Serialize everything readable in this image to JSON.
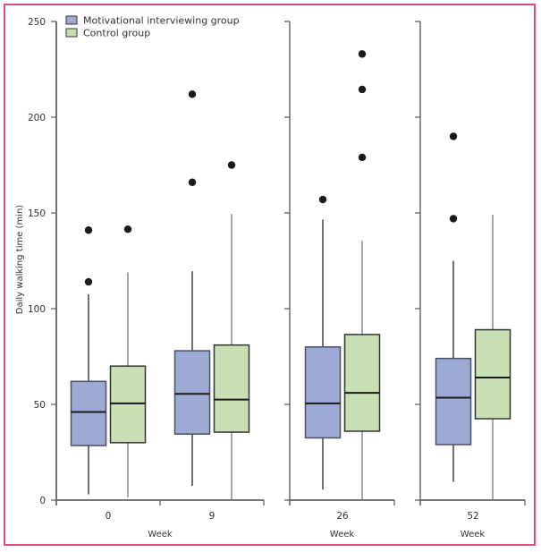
{
  "chart_data": {
    "type": "boxplot",
    "title": "",
    "ylabel": "Daily walking time (min)",
    "xlabel": "Week",
    "ylim": [
      0,
      250
    ],
    "yticks": [
      0,
      50,
      100,
      150,
      200,
      250
    ],
    "grid": false,
    "legend_position": "top-left",
    "colors": {
      "mi": "#9daad4",
      "control": "#c9e0b5",
      "outlier": "#1a1a1a",
      "frame": "#d4507a"
    },
    "legend": [
      {
        "key": "mi",
        "label": "Motivational interviewing group"
      },
      {
        "key": "control",
        "label": "Control group"
      }
    ],
    "panels": [
      {
        "xlabel": "Week",
        "weeks": [
          "0",
          "9"
        ]
      },
      {
        "xlabel": "Week",
        "weeks": [
          "26"
        ]
      },
      {
        "xlabel": "Week",
        "weeks": [
          "52"
        ]
      }
    ],
    "groups": [
      {
        "week": "0",
        "mi": {
          "whisker_low": 3,
          "q1": 28.5,
          "median": 46,
          "q3": 62,
          "whisker_high": 107.5,
          "outliers": [
            114,
            141
          ]
        },
        "control": {
          "whisker_low": 1.5,
          "q1": 30,
          "median": 50.5,
          "q3": 70,
          "whisker_high": 119,
          "outliers": [
            141.5
          ]
        }
      },
      {
        "week": "9",
        "mi": {
          "whisker_low": 7.5,
          "q1": 34.5,
          "median": 55.5,
          "q3": 78,
          "whisker_high": 119.5,
          "outliers": [
            166,
            212
          ]
        },
        "control": {
          "whisker_low": 0,
          "q1": 35.5,
          "median": 52.5,
          "q3": 81,
          "whisker_high": 149.5,
          "outliers": [
            175
          ]
        }
      },
      {
        "week": "26",
        "mi": {
          "whisker_low": 5.5,
          "q1": 32.5,
          "median": 50.5,
          "q3": 80,
          "whisker_high": 146.5,
          "outliers": [
            157
          ]
        },
        "control": {
          "whisker_low": 0,
          "q1": 36,
          "median": 56,
          "q3": 86.5,
          "whisker_high": 135.5,
          "outliers": [
            179,
            214.5,
            233
          ]
        }
      },
      {
        "week": "52",
        "mi": {
          "whisker_low": 9.5,
          "q1": 29,
          "median": 53.5,
          "q3": 74,
          "whisker_high": 125,
          "outliers": [
            147,
            190
          ]
        },
        "control": {
          "whisker_low": 0,
          "q1": 42.5,
          "median": 64,
          "q3": 89,
          "whisker_high": 149,
          "outliers": []
        }
      }
    ]
  }
}
